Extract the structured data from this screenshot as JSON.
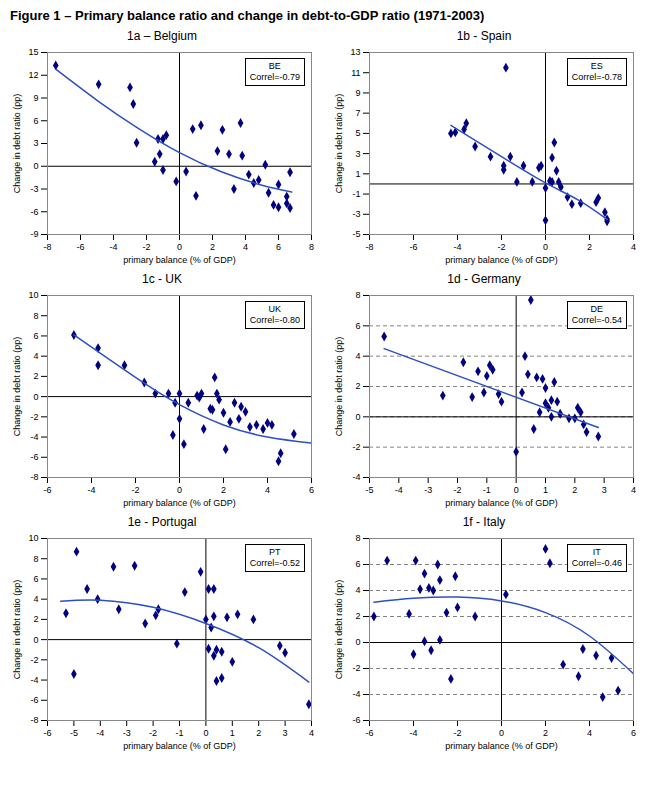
{
  "title": "Figure 1 – Primary balance ratio and change in debt-to-GDP ratio (1971-2003)",
  "chart_data": [
    {
      "type": "scatter",
      "title": "1a – Belgium",
      "x_label": "primary balance (% of GDP)",
      "y_label": "Change in debt ratio (pp)",
      "xlim": [
        -8,
        8
      ],
      "xticks": [
        -8,
        -6,
        -4,
        -2,
        0,
        2,
        4,
        6,
        8
      ],
      "ylim": [
        -9,
        15
      ],
      "yticks": [
        -9,
        -6,
        -3,
        0,
        3,
        6,
        9,
        12,
        15
      ],
      "grid": false,
      "annotations": [
        "BE",
        "Correl=-0.79"
      ],
      "series": [
        {
          "type": "scatter",
          "marker": "diamond",
          "color": "#000080",
          "x": [
            -7.5,
            -4.9,
            -3,
            -2.8,
            -2.6,
            -1.5,
            -1.3,
            -1.2,
            -1,
            -0.8,
            -1,
            -0.2,
            0.4,
            0.8,
            1,
            1.3,
            2.3,
            2.6,
            3,
            3.3,
            3.7,
            3.8,
            4.2,
            4.5,
            4.8,
            5.2,
            5.4,
            5.7,
            6,
            6,
            6.5,
            6.7,
            6.7,
            6.5
          ],
          "values": [
            13.3,
            10.8,
            10.4,
            8.2,
            3.1,
            0.6,
            3.6,
            1.6,
            3.6,
            4.1,
            -0.5,
            -2,
            -0.7,
            4.9,
            -3.9,
            5.4,
            2,
            4.8,
            1.6,
            -3,
            5.7,
            1.4,
            -1.1,
            -2.2,
            -1.8,
            0.2,
            -3.5,
            -5.1,
            -5.4,
            -2.4,
            -4.9,
            -5.5,
            -0.8,
            -4
          ]
        },
        {
          "type": "line",
          "line_style": "solid",
          "color": "#2e4fc4",
          "x": [
            -7.5,
            -5,
            -2.5,
            0,
            2.5,
            5,
            6.8
          ],
          "values": [
            12.8,
            8.7,
            5,
            1.8,
            -0.7,
            -2.5,
            -3.4
          ]
        }
      ]
    },
    {
      "type": "scatter",
      "title": "1b - Spain",
      "x_label": "primary balance (% of GDP)",
      "y_label": "Change in debt ratio (pp)",
      "xlim": [
        -8,
        4
      ],
      "xticks": [
        -8,
        -6,
        -4,
        -2,
        0,
        2,
        4
      ],
      "ylim": [
        -5,
        13
      ],
      "yticks": [
        -5,
        -3,
        -1,
        1,
        3,
        5,
        7,
        9,
        11,
        13
      ],
      "grid": false,
      "annotations": [
        "ES",
        "Correl=-0.78"
      ],
      "series": [
        {
          "type": "scatter",
          "marker": "diamond",
          "color": "#000080",
          "x": [
            -4.3,
            -4.1,
            -3.7,
            -3.6,
            -3.2,
            -2.5,
            -1.9,
            -1.9,
            -1.8,
            -1.6,
            -1.3,
            -1,
            -0.6,
            -0.3,
            -0.2,
            0,
            0,
            0.2,
            0.3,
            0.3,
            0.4,
            0.5,
            0.6,
            0.7,
            1,
            1.2,
            1.6,
            2.3,
            2.4,
            2.7,
            2.8,
            2.8
          ],
          "values": [
            5,
            5.1,
            5.4,
            6,
            3.7,
            2.7,
            1.8,
            1.4,
            11.5,
            2.7,
            0.2,
            1.8,
            0.2,
            1.6,
            1.8,
            -0.4,
            -3.6,
            0.3,
            0.2,
            2.6,
            4.1,
            1.3,
            0.2,
            -0.3,
            -1.3,
            -2,
            -1.9,
            -1.8,
            -1.4,
            -2.8,
            -3.5,
            -3.7
          ]
        },
        {
          "type": "line",
          "line_style": "solid",
          "color": "#2e4fc4",
          "x": [
            -4.3,
            -2,
            0,
            1.5,
            2.8
          ],
          "values": [
            5.8,
            2.7,
            0.1,
            -1.6,
            -3.5
          ]
        }
      ]
    },
    {
      "type": "scatter",
      "title": "1c - UK",
      "x_label": "primary balance (% of GDP)",
      "y_label": "Change in debt ratio (pp)",
      "xlim": [
        -6,
        6
      ],
      "xticks": [
        -6,
        -4,
        -2,
        0,
        2,
        4,
        6
      ],
      "ylim": [
        -8,
        10
      ],
      "yticks": [
        -8,
        -6,
        -4,
        -2,
        0,
        2,
        4,
        6,
        8,
        10
      ],
      "grid": false,
      "annotations": [
        "UK",
        "Correl=-0.80"
      ],
      "series": [
        {
          "type": "scatter",
          "marker": "diamond",
          "color": "#000080",
          "x": [
            -4.8,
            -3.7,
            -3.7,
            -2.5,
            -1.6,
            -1.1,
            -0.5,
            -0.3,
            -0.2,
            0,
            0,
            0.2,
            0.4,
            0.8,
            0.9,
            1,
            1.1,
            1.4,
            1.5,
            1.6,
            1.7,
            1.8,
            2,
            2.1,
            2.3,
            2.5,
            2.7,
            2.8,
            3,
            3.2,
            3.5,
            3.8,
            4,
            4.2,
            4.5,
            4.6,
            5.2
          ],
          "values": [
            6.1,
            4.8,
            3.1,
            3.1,
            1.4,
            0.3,
            0.3,
            -3.8,
            -0.6,
            0.3,
            -2.2,
            -4.7,
            -0.6,
            0.1,
            -0.1,
            0.3,
            -3.2,
            -1.2,
            -1.3,
            1.9,
            0.3,
            -0.3,
            -1.6,
            -5.2,
            -2.5,
            -0.6,
            -2.2,
            -1,
            -1.5,
            -3,
            -2.8,
            -3.2,
            -2.6,
            -2.8,
            -6.4,
            -5.6,
            -3.7
          ]
        },
        {
          "type": "line",
          "line_style": "solid",
          "color": "#2e4fc4",
          "x": [
            -4.8,
            -2,
            0,
            2,
            4,
            6
          ],
          "values": [
            6.1,
            1.9,
            -0.8,
            -2.8,
            -4,
            -4.6
          ]
        }
      ]
    },
    {
      "type": "scatter",
      "title": "1d - Germany",
      "x_label": "primary balance (% of GDP)",
      "y_label": "Change in debt ratio (pp)",
      "xlim": [
        -5,
        4
      ],
      "xticks": [
        -5,
        -4,
        -3,
        -2,
        -1,
        0,
        1,
        2,
        3,
        4
      ],
      "ylim": [
        -4,
        8
      ],
      "yticks": [
        -4,
        -2,
        0,
        2,
        4,
        6,
        8
      ],
      "grid": "y",
      "annotations": [
        "DE",
        "Correl=-0.54"
      ],
      "series": [
        {
          "type": "scatter",
          "marker": "diamond",
          "color": "#000080",
          "x": [
            -4.5,
            -2.5,
            -1.8,
            -1.5,
            -1.3,
            -1.1,
            -1,
            -0.9,
            -0.8,
            -0.6,
            -0.5,
            0,
            0.2,
            0.3,
            0.4,
            0.5,
            0.6,
            0.7,
            0.8,
            0.9,
            1,
            1,
            1.1,
            1.2,
            1.2,
            1.3,
            1.4,
            1.5,
            1.8,
            2,
            2.1,
            2.2,
            2.3,
            2.4,
            2.8
          ],
          "values": [
            5.3,
            1.4,
            3.6,
            1.3,
            3,
            1.6,
            2.7,
            3.4,
            3.1,
            1.5,
            1,
            -2.3,
            1.6,
            4,
            2.8,
            7.7,
            -0.8,
            2.6,
            0.3,
            2.5,
            1.9,
            0.9,
            0.6,
            0,
            1.1,
            2.3,
            1,
            0.2,
            -0.1,
            -0.1,
            0.6,
            0.3,
            -0.5,
            -1,
            -1.3
          ]
        },
        {
          "type": "line",
          "line_style": "solid",
          "color": "#2e4fc4",
          "x": [
            -4.5,
            2.8
          ],
          "values": [
            4.5,
            -0.7
          ]
        }
      ]
    },
    {
      "type": "scatter",
      "title": "1e - Portugal",
      "x_label": "primary balance (% of GDP)",
      "y_label": "Change in debt ratio (pp)",
      "xlim": [
        -6,
        4
      ],
      "xticks": [
        -6,
        -5,
        -4,
        -3,
        -2,
        -1,
        0,
        1,
        2,
        3,
        4
      ],
      "ylim": [
        -8,
        10
      ],
      "yticks": [
        -8,
        -6,
        -4,
        -2,
        0,
        2,
        4,
        6,
        8,
        10
      ],
      "grid": false,
      "annotations": [
        "PT",
        "Correl=-0.52"
      ],
      "series": [
        {
          "type": "scatter",
          "marker": "diamond",
          "color": "#000080",
          "x": [
            -5.3,
            -5,
            -4.9,
            -4.5,
            -4.1,
            -3.5,
            -3.3,
            -2.7,
            -2.3,
            -1.9,
            -1.8,
            -1.1,
            -0.8,
            -0.2,
            0,
            0.1,
            0.1,
            0.2,
            0.3,
            0.3,
            0.3,
            0.4,
            0.4,
            0.6,
            0.6,
            0.8,
            1,
            1.2,
            1.8,
            2.8,
            3,
            3.9
          ],
          "values": [
            2.6,
            -3.4,
            8.7,
            5,
            4,
            7.2,
            3,
            7.3,
            1.6,
            2.4,
            3,
            -0.4,
            4.7,
            6.7,
            2,
            5,
            -0.9,
            1.2,
            -1.6,
            2.3,
            5,
            -4.1,
            -1,
            -1.2,
            -3.8,
            2.2,
            -2.2,
            2.5,
            2,
            -0.6,
            -1.3,
            -6.4
          ]
        },
        {
          "type": "line",
          "line_style": "solid",
          "color": "#2e4fc4",
          "x": [
            -5.5,
            -4,
            -2,
            0,
            2,
            3.9
          ],
          "values": [
            3.8,
            3.9,
            3.2,
            1.6,
            -0.8,
            -4.2
          ]
        }
      ]
    },
    {
      "type": "scatter",
      "title": "1f - Italy",
      "x_label": "primary balance (% of GDP)",
      "y_label": "Change in debt ratio (pp)",
      "xlim": [
        -6,
        6
      ],
      "xticks": [
        -6,
        -4,
        -2,
        0,
        2,
        4,
        6
      ],
      "ylim": [
        -6,
        8
      ],
      "yticks": [
        -6,
        -4,
        -2,
        0,
        2,
        4,
        6,
        8
      ],
      "grid": "y",
      "annotations": [
        "IT",
        "Correl=-0.46"
      ],
      "series": [
        {
          "type": "scatter",
          "marker": "diamond",
          "color": "#000080",
          "x": [
            -5.8,
            -5.2,
            -4.2,
            -4,
            -3.9,
            -3.7,
            -3.5,
            -3.5,
            -3.3,
            -3.2,
            -3.1,
            -2.9,
            -2.8,
            -2.8,
            -2.5,
            -2.3,
            -2.1,
            -2,
            -1.2,
            0.2,
            2,
            2.2,
            2.8,
            3.5,
            3.7,
            4.3,
            4.6,
            5,
            5.3
          ],
          "values": [
            2,
            6.3,
            2.2,
            -0.9,
            6.3,
            4.1,
            0.1,
            5.3,
            4.2,
            -0.6,
            4,
            6,
            4.8,
            0.2,
            2.3,
            -2.8,
            5.1,
            2.7,
            2,
            3.7,
            7.2,
            6.1,
            -1.7,
            -2.6,
            -0.5,
            -1,
            -4.2,
            -1.2,
            -3.7
          ]
        },
        {
          "type": "line",
          "line_style": "solid",
          "color": "#2e4fc4",
          "x": [
            -5.8,
            -4,
            -2,
            0,
            2,
            4,
            6
          ],
          "values": [
            3.1,
            3.4,
            3.5,
            3.2,
            2.3,
            0.5,
            -2.4
          ]
        }
      ]
    }
  ]
}
